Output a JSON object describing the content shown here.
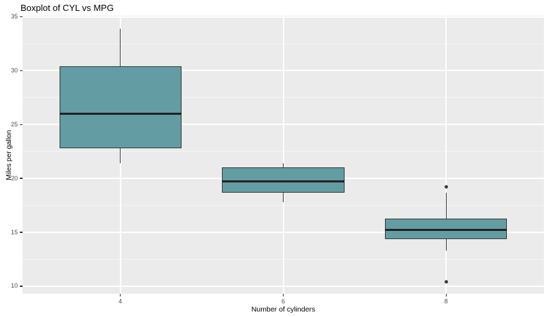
{
  "chart_data": {
    "type": "boxplot",
    "title": "Boxplot of CYL vs MPG",
    "xlabel": "Number of cylinders",
    "ylabel": "Miles per gallon",
    "categories": [
      "4",
      "6",
      "8"
    ],
    "series": [
      {
        "category": "4",
        "whisker_low": 21.4,
        "q1": 22.8,
        "median": 26.0,
        "q3": 30.4,
        "whisker_high": 33.9,
        "outliers": []
      },
      {
        "category": "6",
        "whisker_low": 17.8,
        "q1": 18.65,
        "median": 19.7,
        "q3": 21.0,
        "whisker_high": 21.4,
        "outliers": []
      },
      {
        "category": "8",
        "whisker_low": 13.3,
        "q1": 14.4,
        "median": 15.2,
        "q3": 16.25,
        "whisker_high": 18.7,
        "outliers": [
          19.2,
          10.4
        ]
      }
    ],
    "y_ticks": [
      10,
      15,
      20,
      25,
      30,
      35
    ],
    "y_minor_ticks": [
      12.5,
      17.5,
      22.5,
      27.5,
      32.5
    ],
    "ylim": [
      9.3,
      35.1
    ],
    "grid": "on",
    "legend": "none",
    "colors": {
      "outer_background": "#FFFFFF",
      "panel_background": "#EBEBEB",
      "grid_major": "#FFFFFF",
      "grid_minor": "#F5F5F5",
      "box_fill": "#639DA3",
      "box_border": "#333333",
      "median_line": "#222222",
      "whisker": "#333333",
      "outlier": "#3C3C3C",
      "tick_mark": "#333333",
      "tick_label": "#4D4D4D",
      "axis_title": "#000000",
      "title": "#000000"
    }
  }
}
